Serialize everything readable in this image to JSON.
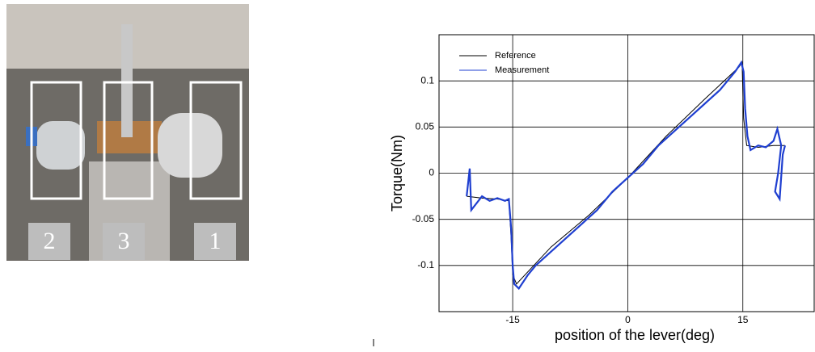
{
  "photo": {
    "labels": [
      "2",
      "3",
      "1"
    ]
  },
  "chart_data": {
    "type": "line",
    "xlabel": "position of the lever(deg)",
    "ylabel": "Torque(Nm)",
    "xlim": [
      -24.6,
      24.3
    ],
    "ylim": [
      -0.15,
      0.15
    ],
    "xticks": [
      -15,
      0,
      15
    ],
    "yticks": [
      0.1,
      0.05,
      0,
      -0.05,
      -0.1
    ],
    "grid": true,
    "legend": "upper left",
    "series": [
      {
        "name": "Reference",
        "color": "#000000",
        "x": [
          -21,
          -19,
          -17,
          -15.5,
          -15.2,
          -15,
          -14.5,
          -10,
          -5,
          0,
          5,
          10,
          14.5,
          14.9,
          15.1,
          15.5,
          17,
          19,
          20.5
        ],
        "values": [
          -0.025,
          -0.027,
          -0.028,
          -0.03,
          -0.07,
          -0.11,
          -0.12,
          -0.08,
          -0.045,
          -0.005,
          0.04,
          0.08,
          0.115,
          0.12,
          0.06,
          0.03,
          0.028,
          0.03,
          0.03
        ]
      },
      {
        "name": "Measurement",
        "color": "#1f3fd0",
        "x": [
          -21,
          -20.6,
          -20.4,
          -19,
          -18,
          -17,
          -16,
          -15.5,
          -15.2,
          -15,
          -14.8,
          -14.2,
          -13,
          -12,
          -10,
          -8,
          -6,
          -4,
          -2,
          0,
          2,
          4,
          6,
          8,
          10,
          12,
          13,
          14,
          14.8,
          15.1,
          15.3,
          15.6,
          16,
          17,
          18,
          19,
          19.5,
          20,
          19.6,
          19.2,
          19.8,
          20.2,
          20.5
        ],
        "values": [
          -0.025,
          0.005,
          -0.04,
          -0.025,
          -0.03,
          -0.027,
          -0.03,
          -0.028,
          -0.06,
          -0.1,
          -0.12,
          -0.125,
          -0.11,
          -0.1,
          -0.085,
          -0.07,
          -0.055,
          -0.04,
          -0.02,
          -0.005,
          0.01,
          0.03,
          0.045,
          0.06,
          0.075,
          0.09,
          0.1,
          0.11,
          0.12,
          0.11,
          0.07,
          0.04,
          0.025,
          0.03,
          0.028,
          0.035,
          0.048,
          0.03,
          0.0,
          -0.02,
          -0.028,
          0.02,
          0.03
        ]
      }
    ]
  }
}
